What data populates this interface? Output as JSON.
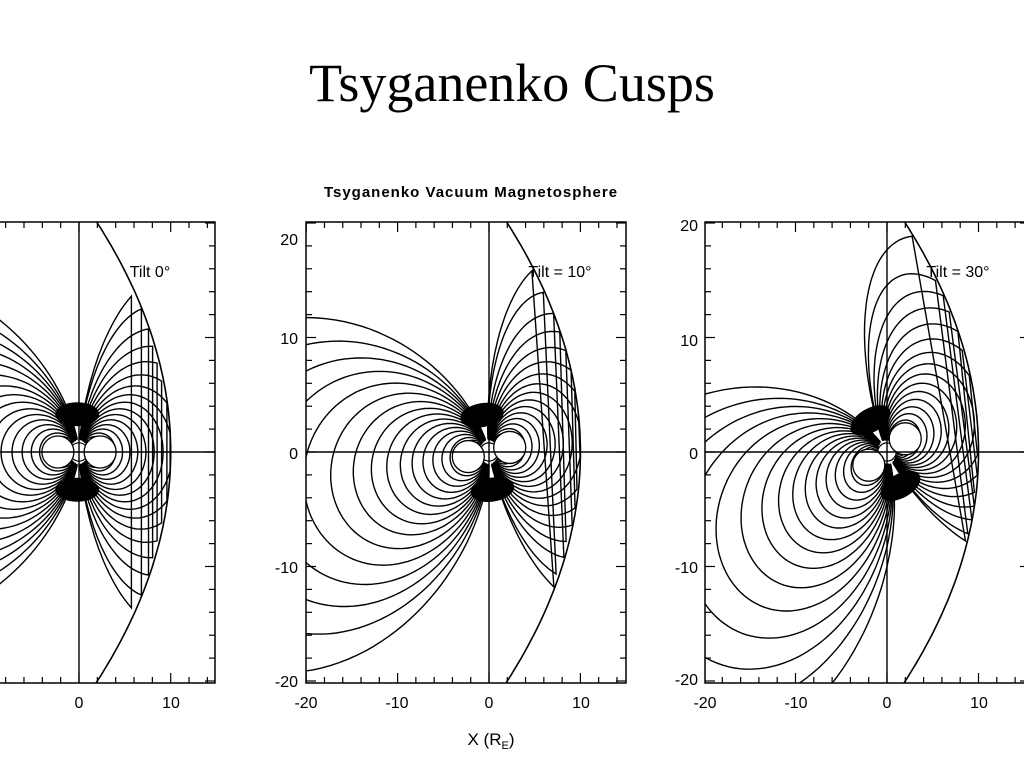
{
  "slide": {
    "title": "Tsyganenko Cusps"
  },
  "figure": {
    "title": "Tsyganenko Vacuum Magnetosphere",
    "xlabel_main": "X (R",
    "xlabel_sub": "E",
    "xlabel_end": ")"
  },
  "panels": [
    {
      "tilt_label": "Tilt 0°",
      "tilt_deg": 0,
      "xticks": [
        "0",
        "10"
      ],
      "yticks": [],
      "xlim": [
        -20,
        15
      ],
      "ylim": [
        -20,
        20
      ]
    },
    {
      "tilt_label": "Tilt = 10°",
      "tilt_deg": 10,
      "xticks": [
        "-20",
        "-10",
        "0",
        "10"
      ],
      "yticks": [
        "20",
        "10",
        "0",
        "-10",
        "-20"
      ],
      "xlim": [
        -20,
        15
      ],
      "ylim": [
        -20,
        20
      ]
    },
    {
      "tilt_label": "Tilt = 30°",
      "tilt_deg": 30,
      "xticks": [
        "-20",
        "-10",
        "0",
        "10"
      ],
      "yticks": [
        "20",
        "10",
        "0",
        "-10",
        "-20"
      ],
      "xlim": [
        -20,
        15
      ],
      "ylim": [
        -20,
        20
      ]
    }
  ]
}
